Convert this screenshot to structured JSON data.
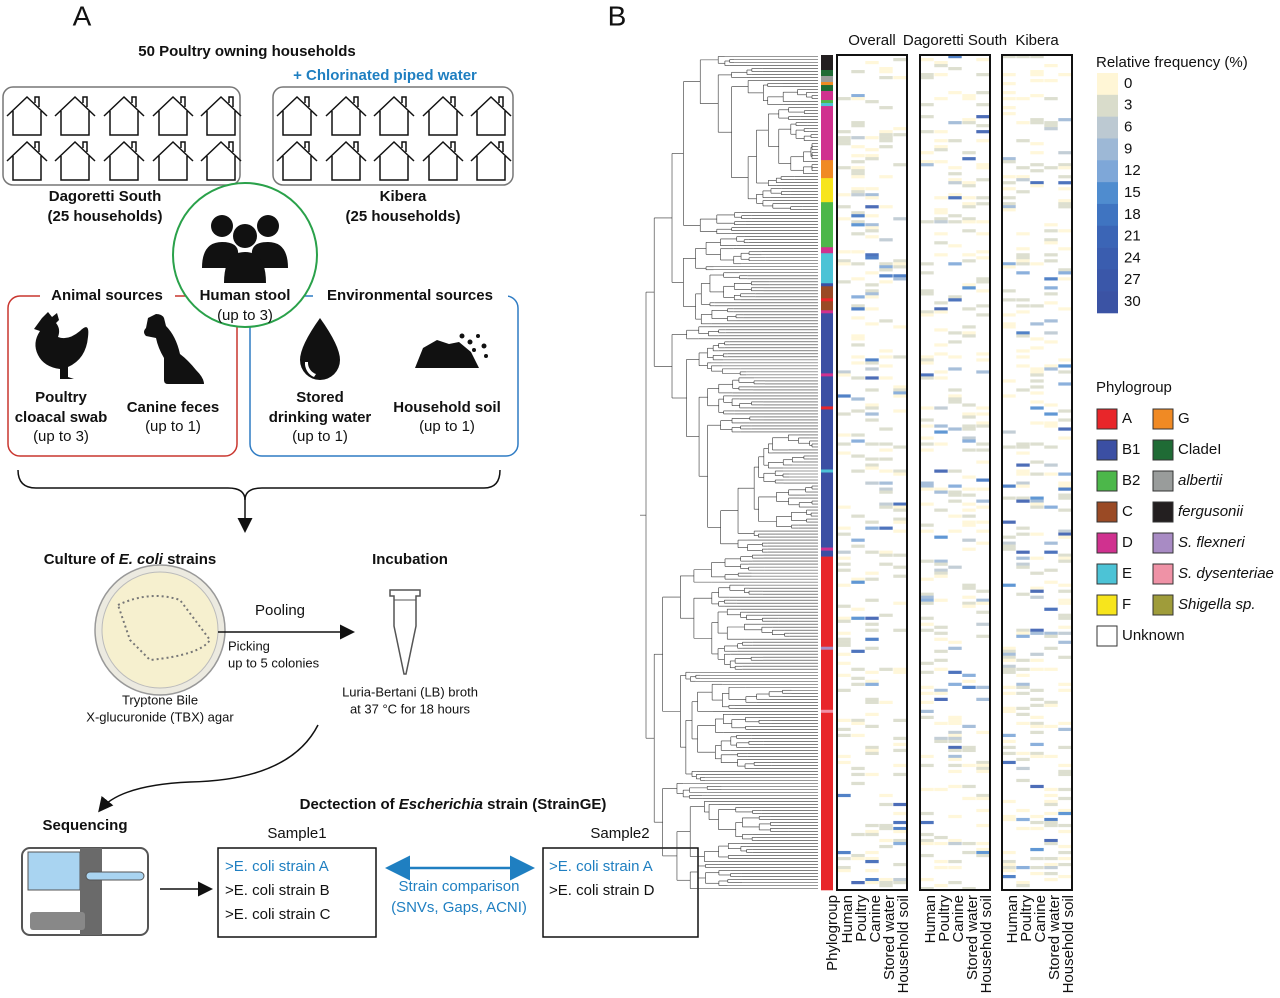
{
  "panel_a": {
    "label": "A",
    "title": "50 Poultry owning households",
    "water_note": "+ Chlorinated piped water",
    "sites": [
      {
        "name": "Dagoretti South",
        "households": "(25 households)"
      },
      {
        "name": "Kibera",
        "households": "(25 households)"
      }
    ],
    "human": {
      "name": "Human stool",
      "count": "(up to 3)"
    },
    "animal_title": "Animal sources",
    "environment_title": "Environmental sources",
    "sources": [
      {
        "lines": [
          "Poultry",
          "cloacal swab"
        ],
        "count": "(up to 3)"
      },
      {
        "lines": [
          "Canine feces"
        ],
        "count": "(up to 1)"
      },
      {
        "lines": [
          "Stored",
          "drinking water"
        ],
        "count": "(up to 1)"
      },
      {
        "lines": [
          "Household soil"
        ],
        "count": "(up to 1)"
      }
    ],
    "culture": {
      "title": [
        "Culture of ",
        "E. coli",
        " strains"
      ],
      "medium": [
        "Tryptone Bile",
        "X-glucuronide (TBX) agar"
      ]
    },
    "pooling": {
      "title": "Pooling",
      "note": [
        "Picking",
        "up to 5 colonies"
      ]
    },
    "incubation": {
      "title": "Incubation",
      "note": [
        "Luria-Bertani (LB) broth",
        "at 37 °C for 18 hours"
      ]
    },
    "sequencing": "Sequencing",
    "detection": {
      "title": [
        "Dectection of ",
        "Escherichia",
        " strain (StrainGE)"
      ],
      "samples": [
        {
          "name": "Sample1",
          "strains": [
            ">E. coli strain A",
            ">E. coli strain B",
            ">E. coli strain C"
          ]
        },
        {
          "name": "Sample2",
          "strains": [
            ">E. coli strain A",
            ">E. coli strain D"
          ]
        }
      ],
      "comparison": [
        "Strain comparison",
        "(SNVs, Gaps, ACNI)"
      ]
    }
  },
  "panel_b": {
    "label": "B",
    "panels": [
      "Overall",
      "Dagoretti South",
      "Kibera"
    ],
    "columns": [
      "Human",
      "Poultry",
      "Canine",
      "Stored water",
      "Household soil"
    ],
    "strip_label": "Phylogroup",
    "scale": {
      "title": "Relative frequency (%)",
      "ticks": [
        0,
        3,
        6,
        9,
        12,
        15,
        18,
        21,
        24,
        27,
        30
      ],
      "colors": [
        "#fff6d6",
        "#d9dccb",
        "#bcc9d2",
        "#9db8d6",
        "#7ea7d8",
        "#4f8ccf",
        "#3f74c1",
        "#3b65b6",
        "#3a5daf",
        "#3a57a9",
        "#3b53a4"
      ]
    },
    "phylogroups": {
      "title": "Phylogroup",
      "items": [
        {
          "name": "A",
          "color": "#e8262a",
          "italic": false
        },
        {
          "name": "B1",
          "color": "#3b4fa3",
          "italic": false
        },
        {
          "name": "B2",
          "color": "#4cb74a",
          "italic": false
        },
        {
          "name": "C",
          "color": "#9a4a25",
          "italic": false
        },
        {
          "name": "D",
          "color": "#d0318f",
          "italic": false
        },
        {
          "name": "E",
          "color": "#4cc3d6",
          "italic": false
        },
        {
          "name": "F",
          "color": "#f7e51c",
          "italic": false
        },
        {
          "name": "G",
          "color": "#f08a24",
          "italic": false
        },
        {
          "name": "CladeI",
          "color": "#1f6b35",
          "italic": false
        },
        {
          "name": "albertii",
          "color": "#999c9b",
          "italic": true
        },
        {
          "name": "fergusonii",
          "color": "#231f20",
          "italic": true
        },
        {
          "name": "S. flexneri",
          "color": "#a88bc4",
          "italic": true
        },
        {
          "name": "S. dysenteriae",
          "color": "#ef92a6",
          "italic": true
        },
        {
          "name": "Shigella sp.",
          "color": "#9f9c3a",
          "italic": true
        },
        {
          "name": "Unknown",
          "color": "#ffffff",
          "italic": false
        }
      ]
    },
    "strip": [
      [
        10,
        5
      ],
      [
        8,
        2
      ],
      [
        9,
        2
      ],
      [
        7,
        1
      ],
      [
        8,
        2
      ],
      [
        4,
        3
      ],
      [
        2,
        1
      ],
      [
        5,
        1
      ],
      [
        4,
        18
      ],
      [
        7,
        6
      ],
      [
        6,
        8
      ],
      [
        2,
        15
      ],
      [
        4,
        2
      ],
      [
        5,
        10
      ],
      [
        1,
        1
      ],
      [
        3,
        4
      ],
      [
        0,
        1
      ],
      [
        3,
        3
      ],
      [
        4,
        1
      ],
      [
        1,
        20
      ],
      [
        4,
        1
      ],
      [
        1,
        10
      ],
      [
        0,
        1
      ],
      [
        1,
        20
      ],
      [
        5,
        1
      ],
      [
        1,
        25
      ],
      [
        4,
        1
      ],
      [
        1,
        2
      ],
      [
        0,
        30
      ],
      [
        11,
        1
      ],
      [
        0,
        20
      ],
      [
        12,
        1
      ],
      [
        0,
        59
      ]
    ]
  }
}
